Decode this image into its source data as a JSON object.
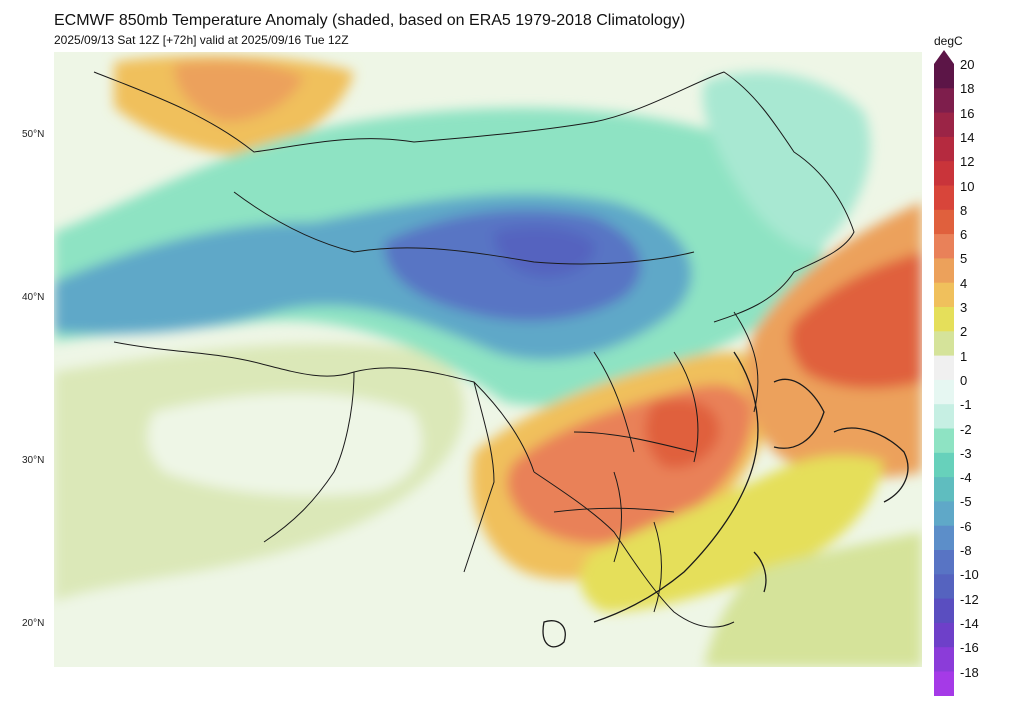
{
  "header": {
    "title": "ECMWF 850mb Temperature Anomaly (shaded, based on ERA5 1979-2018 Climatology)",
    "subtitle": "2025/09/13 Sat 12Z [+72h] valid at 2025/09/16 Tue 12Z"
  },
  "map": {
    "latitude_labels": [
      "50°N",
      "40°N",
      "30°N",
      "20°N"
    ],
    "regions": [
      {
        "name": "cold-core-mongolia",
        "anomaly": -10
      },
      {
        "name": "cold-band-northwest",
        "anomaly": -5
      },
      {
        "name": "cool-surround",
        "anomaly": -3
      },
      {
        "name": "warm-central-china",
        "anomaly": 7
      },
      {
        "name": "warm-korea-japan-sea",
        "anomaly": 7
      },
      {
        "name": "warm-far-north",
        "anomaly": 3
      },
      {
        "name": "neutral-tibet",
        "anomaly": 1
      }
    ]
  },
  "colorbar": {
    "unit": "degC",
    "labels": [
      "20",
      "18",
      "16",
      "14",
      "12",
      "10",
      "8",
      "6",
      "5",
      "4",
      "3",
      "2",
      "1",
      "0",
      "-1",
      "-2",
      "-3",
      "-4",
      "-5",
      "-6",
      "-8",
      "-10",
      "-12",
      "-14",
      "-16",
      "-18"
    ],
    "colors": [
      "#5c1547",
      "#7e1e4c",
      "#9b2446",
      "#b52a3f",
      "#c9343a",
      "#d8453a",
      "#e0603d",
      "#e98159",
      "#eca15b",
      "#f0c05c",
      "#e5df5a",
      "#d5e39a",
      "#f0f0f0",
      "#e6f7f2",
      "#c6efe3",
      "#8ee3c3",
      "#67d1bb",
      "#5fbdbf",
      "#5fa8c8",
      "#5c8ec9",
      "#5874c4",
      "#5563bf",
      "#5a4ec0",
      "#6e40c9",
      "#8b3cd9",
      "#a53ae7"
    ]
  }
}
